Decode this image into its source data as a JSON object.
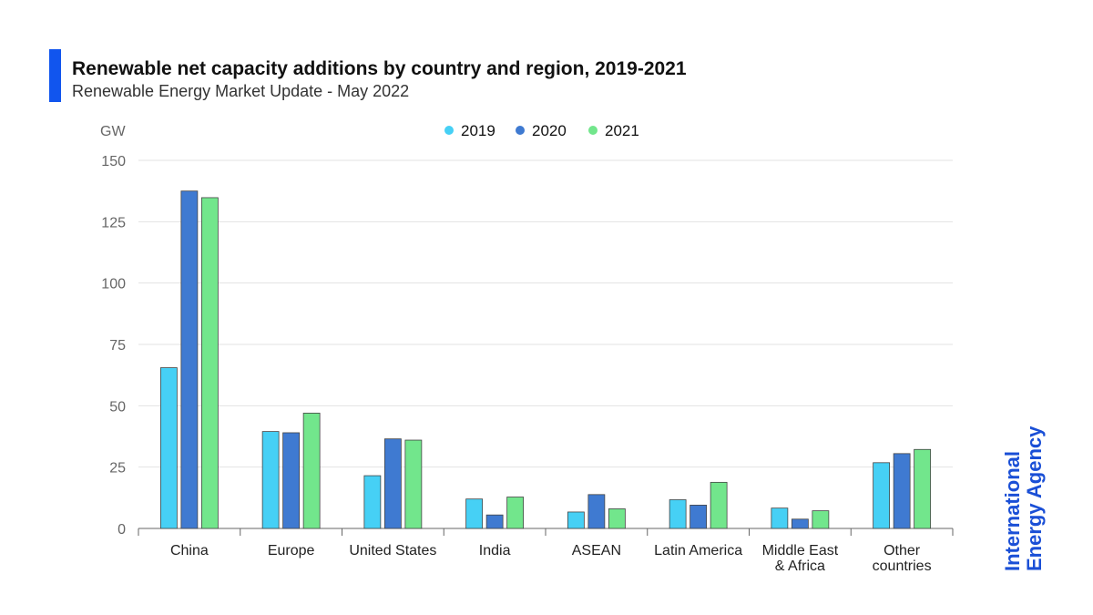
{
  "header": {
    "title": "Renewable net capacity additions by country and region, 2019-2021",
    "subtitle": "Renewable Energy Market Update - May 2022"
  },
  "brand": {
    "line1": "International",
    "line2": "Energy Agency"
  },
  "colors": {
    "accent": "#1155ee",
    "brand": "#1a4fd6",
    "grid": "#e3e3e3",
    "axis": "#666666",
    "tick_text": "#666666",
    "bar_stroke": "#444444"
  },
  "chart_data": {
    "type": "bar",
    "ylabel": "GW",
    "xlabel": "",
    "ylim": [
      0,
      150
    ],
    "yticks": [
      0,
      25,
      50,
      75,
      100,
      125,
      150
    ],
    "grid": true,
    "legend_position": "top-center",
    "categories": [
      [
        "China"
      ],
      [
        "Europe"
      ],
      [
        "United States"
      ],
      [
        "India"
      ],
      [
        "ASEAN"
      ],
      [
        "Latin America"
      ],
      [
        "Middle East",
        "& Africa"
      ],
      [
        "Other",
        "countries"
      ]
    ],
    "series": [
      {
        "name": "2019",
        "color": "#46d0f5",
        "values": [
          65.5,
          39.5,
          21.5,
          12,
          6.7,
          11.7,
          8.3,
          26.8
        ]
      },
      {
        "name": "2020",
        "color": "#3f7ad1",
        "values": [
          137.5,
          39,
          36.5,
          5.5,
          13.8,
          9.5,
          3.8,
          30.5
        ]
      },
      {
        "name": "2021",
        "color": "#72e68c",
        "values": [
          134.8,
          47,
          36,
          12.8,
          8,
          18.8,
          7.2,
          32.2
        ]
      }
    ]
  }
}
